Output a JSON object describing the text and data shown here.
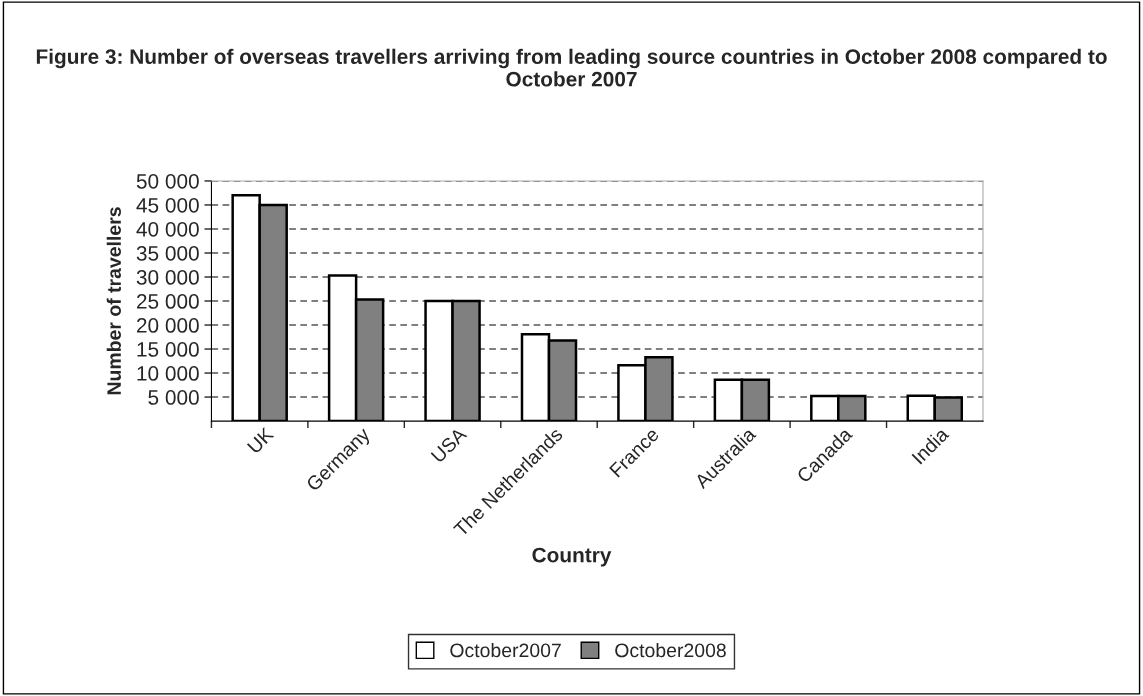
{
  "chart_data": {
    "type": "bar",
    "title": "Figure 3: Number of overseas travellers arriving from leading source countries in October 2008 compared to October 2007",
    "xlabel": "Country",
    "ylabel": "Number of travellers",
    "categories": [
      "UK",
      "Germany",
      "USA",
      "The Netherlands",
      "France",
      "Australia",
      "Canada",
      "India"
    ],
    "series": [
      {
        "name": "October2007",
        "color": "#ffffff",
        "values": [
          47000,
          30300,
          25000,
          18100,
          11600,
          8600,
          5200,
          5300
        ]
      },
      {
        "name": "October2008",
        "color": "#808080",
        "values": [
          45000,
          25300,
          25000,
          16800,
          13300,
          8600,
          5200,
          4900
        ]
      }
    ],
    "ylim": [
      0,
      50000
    ],
    "yticks": [
      {
        "value": 5000,
        "label": "5 000"
      },
      {
        "value": 10000,
        "label": "10 000"
      },
      {
        "value": 15000,
        "label": "15 000"
      },
      {
        "value": 20000,
        "label": "20 000"
      },
      {
        "value": 25000,
        "label": "25 000"
      },
      {
        "value": 30000,
        "label": "30 000"
      },
      {
        "value": 35000,
        "label": "35 000"
      },
      {
        "value": 40000,
        "label": "40 000"
      },
      {
        "value": 45000,
        "label": "45 000"
      },
      {
        "value": 50000,
        "label": "50 000"
      }
    ],
    "grid": "y",
    "legend": "bottom"
  }
}
